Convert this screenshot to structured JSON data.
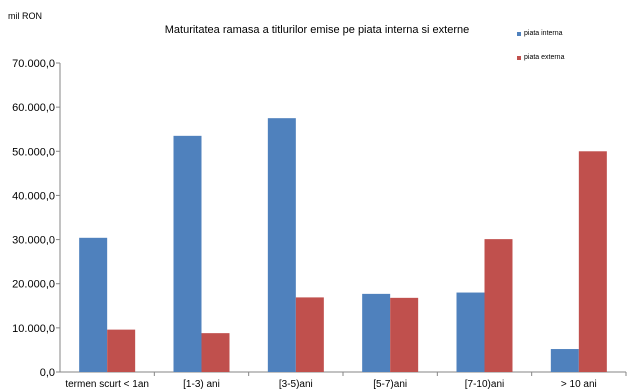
{
  "chart_data": {
    "type": "bar",
    "title": "Maturitatea ramasa a titlurilor emise pe piata interna si externe",
    "unit_label": "mil RON",
    "categories": [
      "termen scurt < 1an",
      "[1-3) ani",
      "[3-5)ani",
      "[5-7)ani",
      "[7-10)ani",
      "> 10 ani"
    ],
    "series": [
      {
        "name": "piata interna",
        "color": "#4F81BD",
        "values": [
          30400,
          53500,
          57500,
          17700,
          18000,
          5200
        ]
      },
      {
        "name": "piata externa",
        "color": "#C0504D",
        "values": [
          9600,
          8800,
          16900,
          16800,
          30100,
          50000
        ]
      }
    ],
    "ylim": [
      0,
      70000
    ],
    "yticks": [
      "0,0",
      "10.000,0",
      "20.000,0",
      "30.000,0",
      "40.000,0",
      "50.000,0",
      "60.000,0",
      "70.000,0"
    ],
    "grid": false,
    "legend_position": "top-right"
  }
}
